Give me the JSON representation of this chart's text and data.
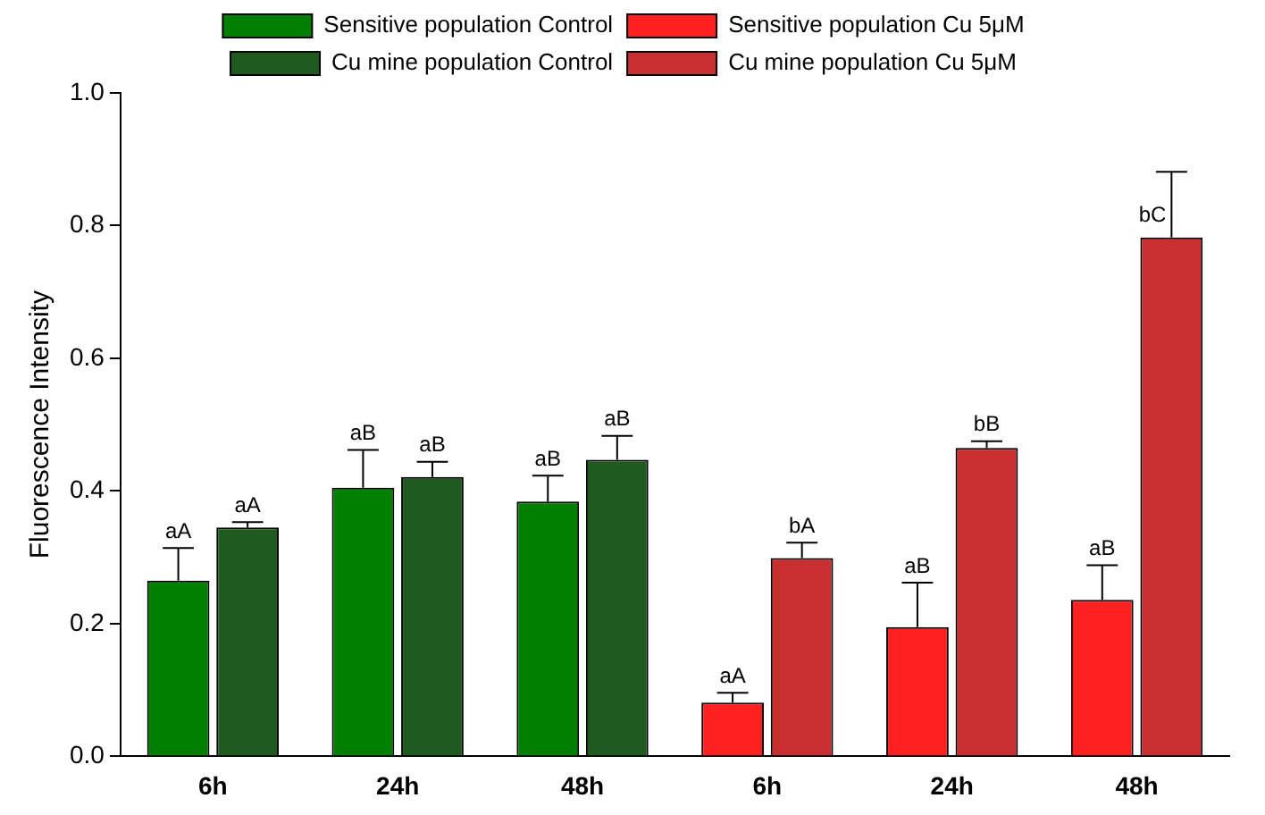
{
  "chart_data": {
    "type": "bar",
    "ylabel": "Fluorescence Intensity",
    "categories": [
      "6h",
      "24h",
      "48h",
      "6h",
      "24h",
      "48h"
    ],
    "series": [
      {
        "name": "Sensitive population Control",
        "color": "#008000",
        "values": [
          0.265,
          0.405,
          0.384,
          null,
          null,
          null
        ],
        "errors": [
          0.049,
          0.057,
          0.039,
          null,
          null,
          null
        ],
        "value_labels": [
          "aA",
          "aB",
          "aB",
          null,
          null,
          null
        ]
      },
      {
        "name": "Sensitive population Cu 5μM",
        "color": "#ff2020",
        "values": [
          null,
          null,
          null,
          0.081,
          0.195,
          0.236
        ],
        "errors": [
          null,
          null,
          null,
          0.015,
          0.067,
          0.052
        ],
        "value_labels": [
          null,
          null,
          null,
          "aA",
          "aB",
          "aB"
        ]
      },
      {
        "name": "Cu mine population Control",
        "color": "#1f5a1f",
        "values": [
          0.345,
          0.421,
          0.447,
          null,
          null,
          null
        ],
        "errors": [
          0.008,
          0.023,
          0.036,
          null,
          null,
          null
        ],
        "value_labels": [
          "aA",
          "aB",
          "aB",
          null,
          null,
          null
        ]
      },
      {
        "name": "Cu mine population Cu 5μM",
        "color": "#c83030",
        "values": [
          null,
          null,
          null,
          0.299,
          0.465,
          0.782
        ],
        "errors": [
          null,
          null,
          null,
          0.023,
          0.01,
          0.099
        ],
        "value_labels": [
          null,
          null,
          null,
          "bA",
          "bB",
          "bC"
        ]
      }
    ],
    "ylim": [
      0,
      1.0
    ],
    "yticks": [
      {
        "value": 0,
        "label": "0.0"
      },
      {
        "value": 0.2,
        "label": "0.2"
      },
      {
        "value": 0.4,
        "label": "0.4"
      },
      {
        "value": 0.6,
        "label": "0.6"
      },
      {
        "value": 0.8,
        "label": "0.8"
      },
      {
        "value": 1.0,
        "label": "1.0"
      }
    ],
    "grid": false,
    "legend": "top"
  }
}
